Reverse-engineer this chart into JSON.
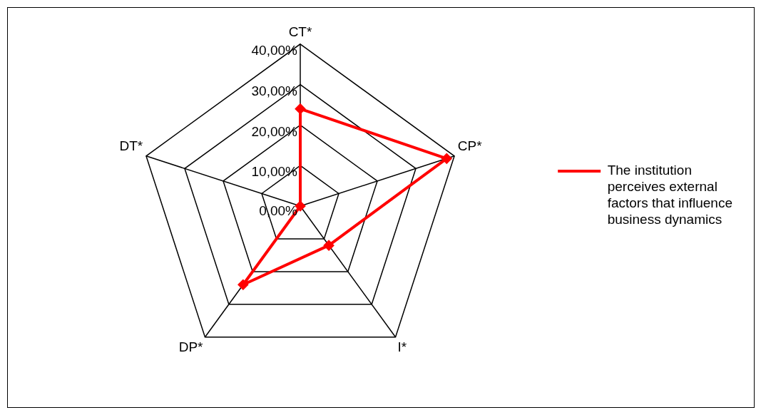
{
  "chart_data": {
    "type": "radar",
    "categories": [
      "CT*",
      "CP*",
      "I*",
      "DP*",
      "DT*"
    ],
    "series": [
      {
        "name": "The institution perceives external factors that influence business dynamics",
        "color": "#ff0000",
        "values": [
          24,
          38,
          12,
          24,
          0
        ]
      }
    ],
    "ylim": [
      0,
      40
    ],
    "yticks": [
      {
        "value": 0,
        "label": "0,00%"
      },
      {
        "value": 10,
        "label": "10,00%"
      },
      {
        "value": 20,
        "label": "20,00%"
      },
      {
        "value": 30,
        "label": "30,00%"
      },
      {
        "value": 40,
        "label": "40,00%"
      }
    ],
    "grid": true,
    "legend": "right",
    "marker": "diamond",
    "line_style": "solid"
  }
}
